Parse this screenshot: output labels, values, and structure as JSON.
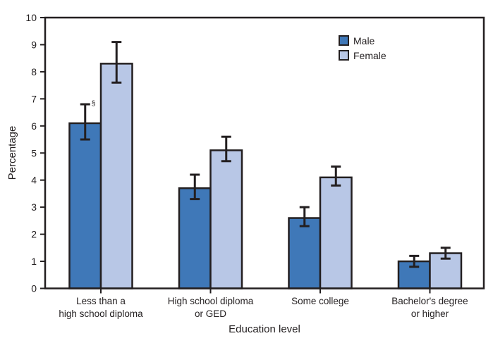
{
  "chart_data": {
    "type": "bar",
    "title": "",
    "xlabel": "Education level",
    "ylabel": "Percentage",
    "ylim": [
      0,
      10
    ],
    "yticks": [
      0,
      1,
      2,
      3,
      4,
      5,
      6,
      7,
      8,
      9,
      10
    ],
    "grid": false,
    "legend_position": "top-right",
    "categories": [
      [
        "Less than a",
        "high school diploma"
      ],
      [
        "High school diploma",
        "or GED"
      ],
      [
        "Some college"
      ],
      [
        "Bachelor's degree",
        "or higher"
      ]
    ],
    "series": [
      {
        "name": "Male",
        "color": "#3f78b8",
        "values": [
          6.1,
          3.7,
          2.6,
          1.0
        ],
        "ci_low": [
          5.5,
          3.3,
          2.3,
          0.8
        ],
        "ci_high": [
          6.8,
          4.2,
          3.0,
          1.2
        ]
      },
      {
        "name": "Female",
        "color": "#b8c7e6",
        "values": [
          8.3,
          5.1,
          4.1,
          1.3
        ],
        "ci_low": [
          7.6,
          4.7,
          3.8,
          1.1
        ],
        "ci_high": [
          9.1,
          5.6,
          4.5,
          1.5
        ]
      }
    ],
    "annotations": [
      {
        "series": 0,
        "category": 0,
        "text": "§"
      }
    ]
  }
}
